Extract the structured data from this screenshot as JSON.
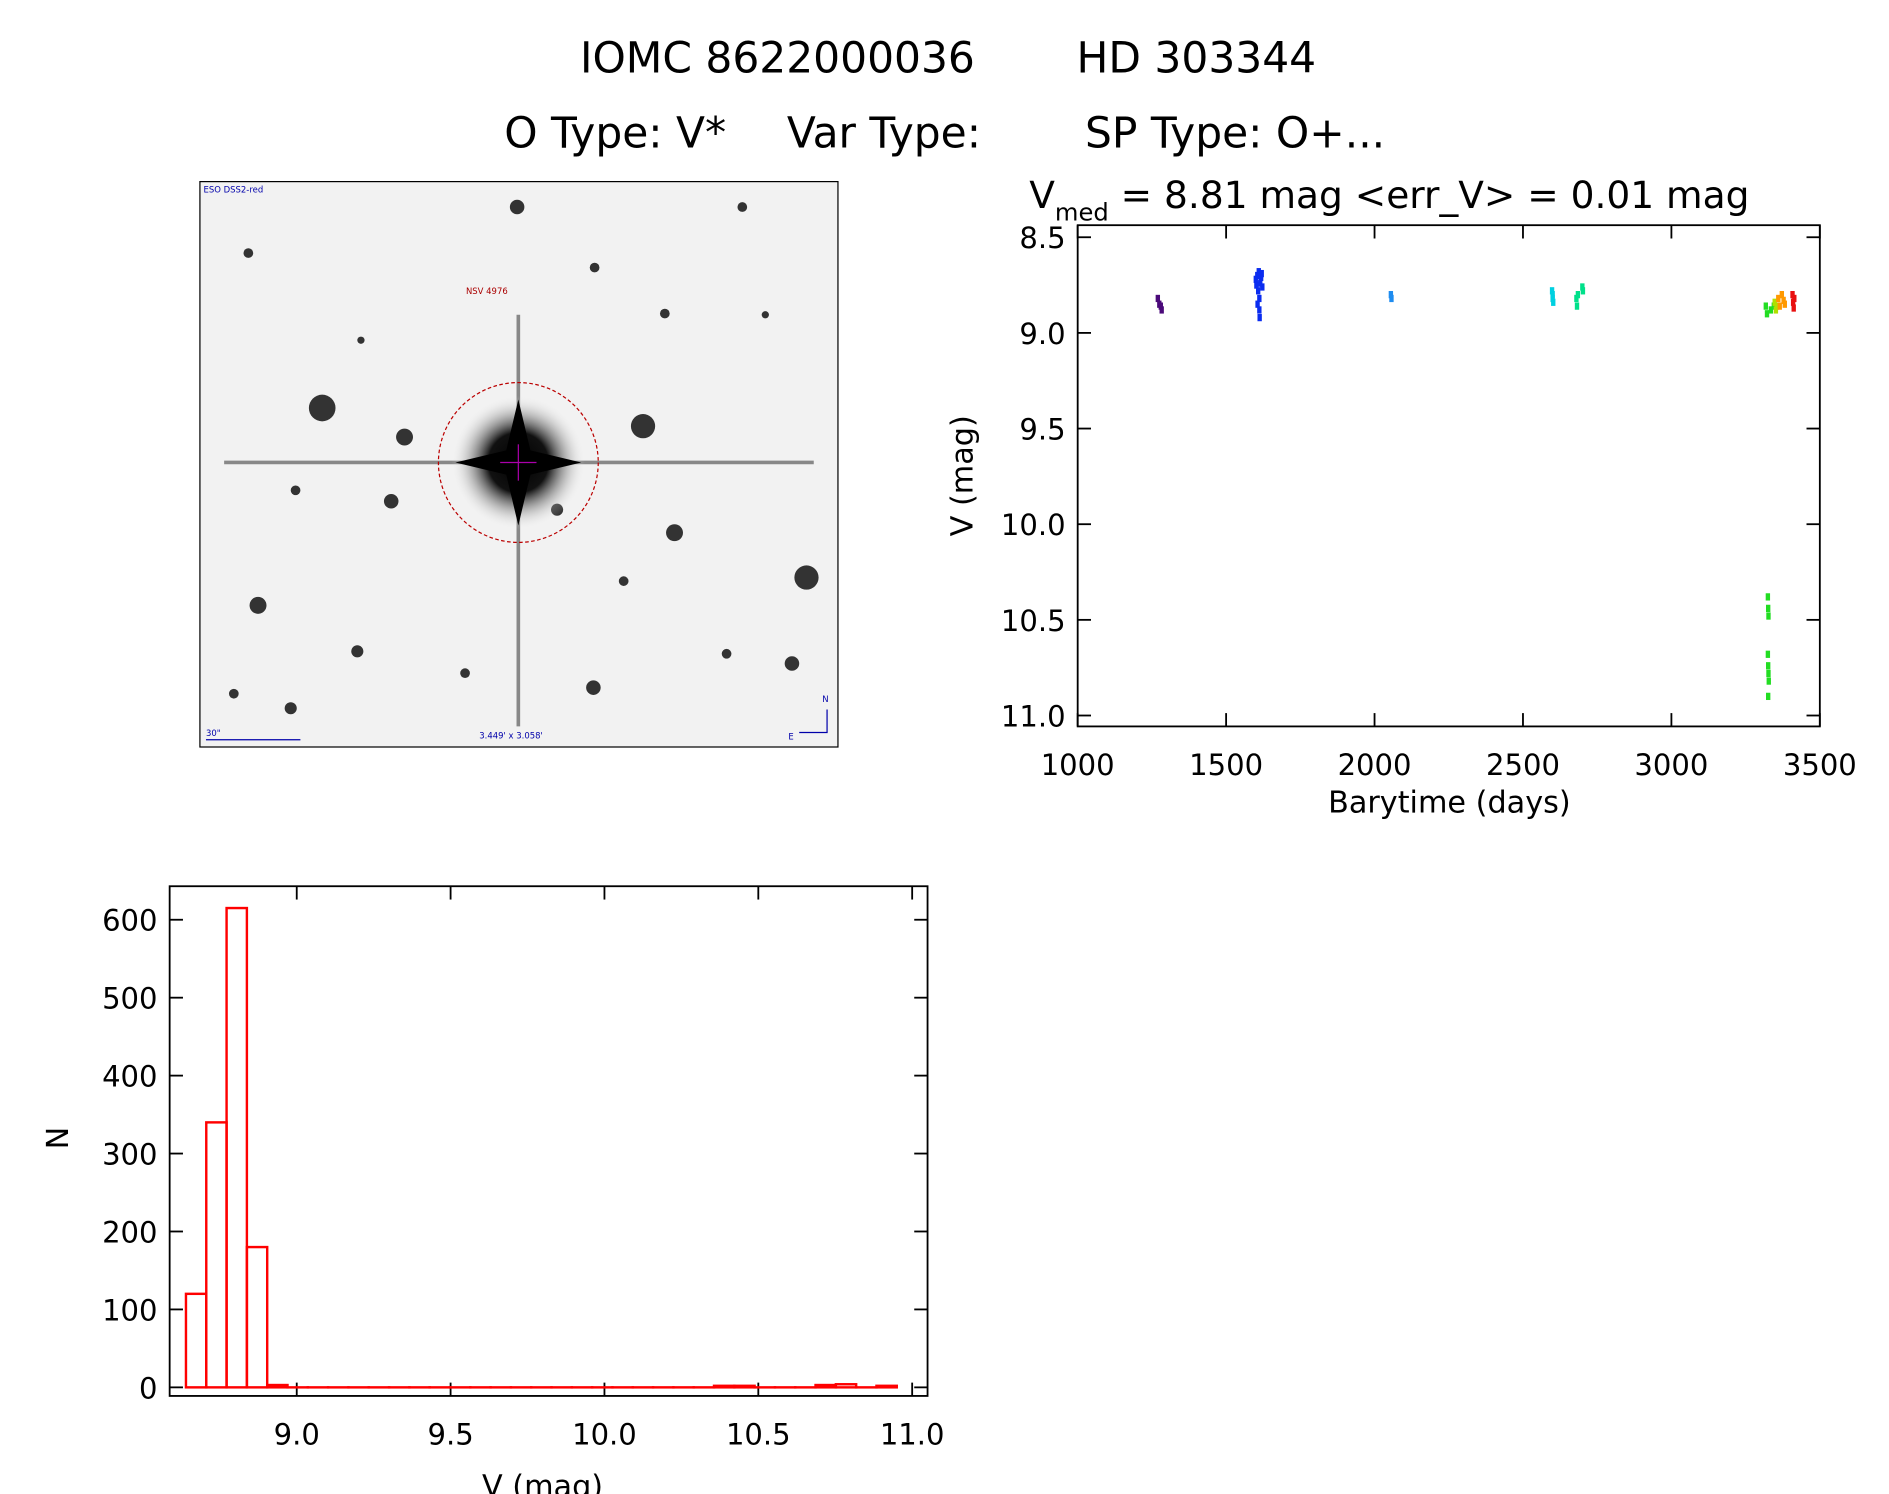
{
  "header": {
    "line1": [
      "IOMC 8622000036",
      "HD 303344"
    ],
    "line2": [
      "O Type: V*",
      "Var Type:",
      "SP Type: O+..."
    ]
  },
  "finder_image": {
    "survey": "ESO DSS2-red",
    "object": "NSV 4976",
    "scale": "30\"",
    "size": "3.449' x 3.058'",
    "north": "N",
    "east": "E"
  },
  "chart_data": [
    {
      "type": "scatter",
      "title": {
        "text": "V",
        "subscript": "med",
        "rest": " = 8.81 mag <err_V> = 0.01 mag"
      },
      "x_label": "Barytime (days)",
      "y_label": "V (mag)",
      "xlim": [
        1000,
        3500
      ],
      "xticks": [
        1000,
        1500,
        2000,
        2500,
        3000,
        3500
      ],
      "ylim": [
        11.057,
        8.437
      ],
      "yticks": [
        8.5,
        {
          "value": 9,
          "label": "9.0"
        },
        9.5,
        {
          "value": 10,
          "label": "10.0"
        },
        10.5,
        {
          "value": 11,
          "label": "11.0"
        }
      ],
      "series": [
        {
          "color": "#4b0a7a",
          "x": [
            1270,
            1275,
            1280,
            1283
          ],
          "values": [
            8.82,
            8.85,
            8.86,
            8.88
          ]
        },
        {
          "color": "#0a2cf0",
          "x": [
            1600,
            1602,
            1605,
            1606,
            1608,
            1610,
            1612,
            1612,
            1613,
            1615,
            1618,
            1620,
            1622
          ],
          "values": [
            8.72,
            8.75,
            8.7,
            8.85,
            8.78,
            8.68,
            8.82,
            8.88,
            8.92,
            8.74,
            8.71,
            8.69,
            8.76
          ]
        },
        {
          "color": "#1e8cf0",
          "x": [
            2055,
            2057
          ],
          "values": [
            8.8,
            8.82
          ]
        },
        {
          "color": "#00d0e0",
          "x": [
            2598,
            2600,
            2600,
            2602
          ],
          "values": [
            8.78,
            8.8,
            8.82,
            8.84
          ]
        },
        {
          "color": "#00e08a",
          "x": [
            2680,
            2682,
            2685,
            2700,
            2702
          ],
          "values": [
            8.82,
            8.86,
            8.8,
            8.76,
            8.78
          ]
        },
        {
          "color": "#22dd22",
          "x": [
            3318,
            3322,
            3325,
            3326,
            3327,
            3325,
            3326,
            3327,
            3328,
            3326,
            3335,
            3345
          ],
          "values": [
            8.86,
            8.9,
            10.38,
            10.44,
            10.48,
            10.68,
            10.74,
            10.78,
            10.82,
            10.9,
            8.88,
            8.86
          ]
        },
        {
          "color": "#b0e000",
          "x": [
            3348,
            3352,
            3356
          ],
          "values": [
            8.84,
            8.88,
            8.86
          ]
        },
        {
          "color": "#ff9900",
          "x": [
            3360,
            3365,
            3372,
            3378,
            3382
          ],
          "values": [
            8.82,
            8.86,
            8.8,
            8.83,
            8.85
          ]
        },
        {
          "color": "#e81010",
          "x": [
            3408,
            3410,
            3412,
            3414
          ],
          "values": [
            8.8,
            8.84,
            8.87,
            8.82
          ]
        }
      ]
    },
    {
      "type": "histogram",
      "x_label": "V (mag)",
      "y_label": "N",
      "color": "#ff0000",
      "bins": [
        8.64,
        8.706,
        8.772,
        8.838,
        8.904,
        8.97,
        9.036,
        9.102,
        9.168,
        9.234,
        9.3,
        9.366,
        9.432,
        9.498,
        9.564,
        9.63,
        9.696,
        9.762,
        9.828,
        9.894,
        9.96,
        10.026,
        10.092,
        10.158,
        10.224,
        10.29,
        10.356,
        10.422,
        10.488,
        10.554,
        10.62,
        10.686,
        10.752,
        10.818,
        10.884,
        10.95
      ],
      "values": [
        120,
        340,
        615,
        180,
        3,
        0,
        0,
        0,
        0,
        0,
        0,
        0,
        0,
        0,
        0,
        0,
        0,
        0,
        0,
        0,
        0,
        0,
        0,
        0,
        0,
        0,
        2,
        2,
        0,
        0,
        0,
        3,
        4,
        0,
        2
      ],
      "xlim": [
        8.587,
        11.05
      ],
      "xticks": [
        {
          "value": 9,
          "label": "9.0"
        },
        9.5,
        {
          "value": 10,
          "label": "10.0"
        },
        10.5,
        {
          "value": 11,
          "label": "11.0"
        }
      ],
      "ylim": [
        -11,
        643
      ],
      "yticks": [
        0,
        100,
        200,
        300,
        400,
        500,
        600
      ]
    }
  ]
}
